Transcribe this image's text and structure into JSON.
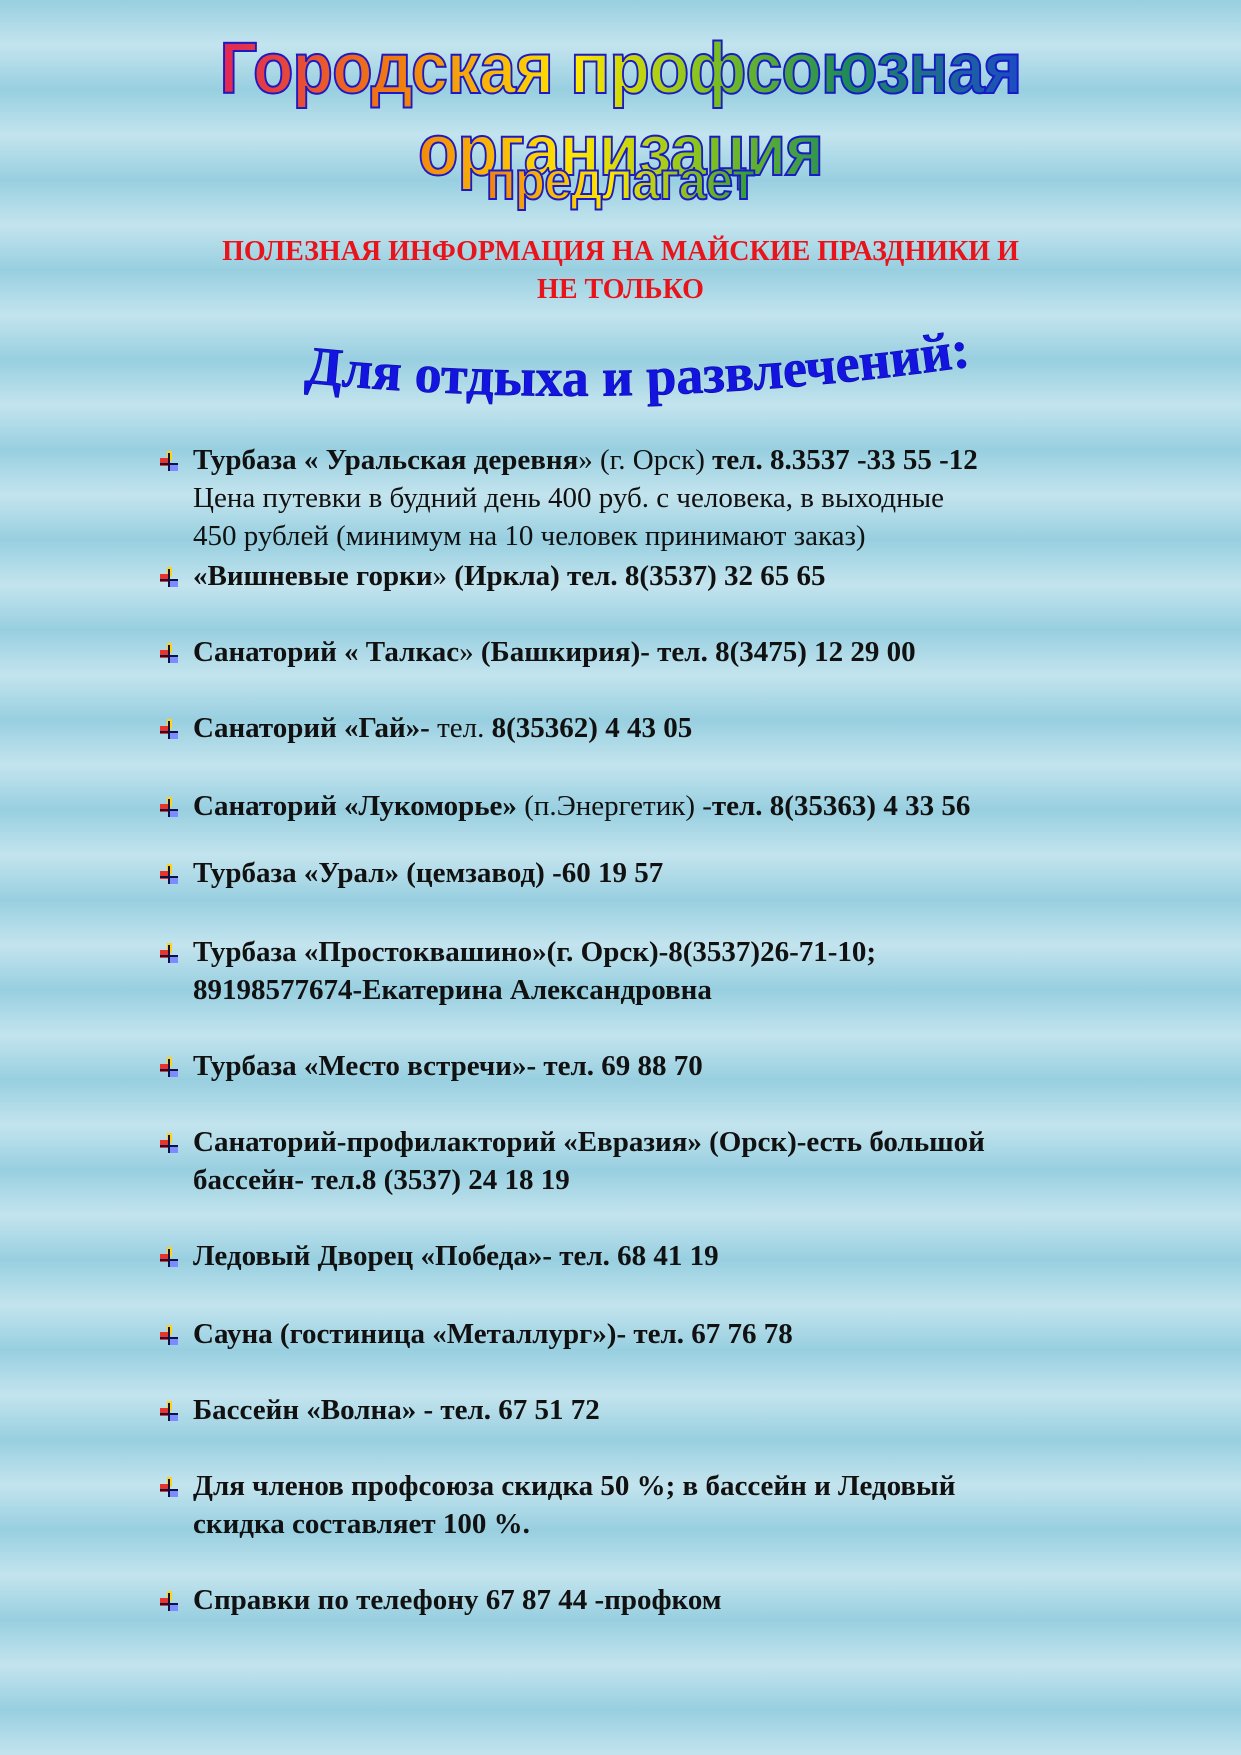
{
  "header": {
    "title": "Городская профсоюзная организация",
    "subtitle": "предлагает",
    "notice_line1": "ПОЛЕЗНАЯ ИНФОРМАЦИЯ  НА МАЙСКИЕ ПРАЗДНИКИ И",
    "notice_line2": "НЕ ТОЛЬКО",
    "section_heading": "Для отдыха и развлечений:"
  },
  "colors": {
    "notice": "#e8141c",
    "heading": "#1414e0",
    "text": "#111111"
  },
  "bullet_icon": "four-color-square-bullet",
  "items": [
    {
      "lines": [
        [
          {
            "t": "Турбаза « Уральская деревня",
            "b": true
          },
          {
            "t": "» (г. Орск)  ",
            "b": false
          },
          {
            "t": "тел.   8.3537 -33 55 -12",
            "b": true
          }
        ],
        [
          {
            "t": "Цена путевки в будний день 400 руб. с человека, в  выходные",
            "b": false
          }
        ],
        [
          {
            "t": "450 рублей (минимум на 10 человек принимают заказ)",
            "b": false
          }
        ]
      ]
    },
    {
      "lines": [
        [
          {
            "t": "«Вишневые горки",
            "b": true
          },
          {
            "t": "» ",
            "b": false
          },
          {
            "t": "(Иркла)   тел.  8(3537)  32 65 65",
            "b": true
          }
        ]
      ]
    },
    {
      "lines": [
        [
          {
            "t": "Санаторий « Талкас",
            "b": true
          },
          {
            "t": "» ",
            "b": false
          },
          {
            "t": "(Башкирия)-  тел. 8(3475)  12 29 00",
            "b": true
          }
        ]
      ]
    },
    {
      "lines": [
        [
          {
            "t": "Санаторий «Гай»-  ",
            "b": true
          },
          {
            "t": "тел. ",
            "b": false
          },
          {
            "t": "8(35362)  4 43 05",
            "b": true
          }
        ]
      ]
    },
    {
      "lines": [
        [
          {
            "t": "Санаторий «Лукоморье» ",
            "b": true
          },
          {
            "t": "(п.Энергетик) -",
            "b": false
          },
          {
            "t": "тел. 8(35363)   4 33 56",
            "b": true
          }
        ]
      ]
    },
    {
      "lines": [
        [
          {
            "t": "Турбаза «Урал» (цемзавод) -60 19 57",
            "b": true
          }
        ]
      ]
    },
    {
      "lines": [
        [
          {
            "t": "Турбаза «Простоквашино»(г. Орск)-8(3537)26-71-10;",
            "b": true
          }
        ],
        [
          {
            "t": "89198577674-Екатерина Александровна",
            "b": true
          }
        ]
      ]
    },
    {
      "lines": [
        [
          {
            "t": "Турбаза «Место встречи»- тел. 69 88 70",
            "b": true
          }
        ]
      ]
    },
    {
      "lines": [
        [
          {
            "t": "Санаторий-профилакторий «Евразия» (Орск)-есть большой",
            "b": true
          }
        ],
        [
          {
            "t": "бассейн- тел.8 (3537) 24 18 19",
            "b": true
          }
        ]
      ]
    },
    {
      "lines": [
        [
          {
            "t": "Ледовый Дворец «Победа»-  тел. 68 41 19",
            "b": true
          }
        ]
      ]
    },
    {
      "lines": [
        [
          {
            "t": "Сауна (гостиница «Металлург»)- тел. 67 76 78",
            "b": true
          }
        ]
      ]
    },
    {
      "lines": [
        [
          {
            "t": "Бассейн «Волна» - тел. 67 51 72",
            "b": true
          }
        ]
      ]
    },
    {
      "lines": [
        [
          {
            "t": "Для членов профсоюза  скидка 50 %; в бассейн и Ледовый",
            "b": true
          }
        ],
        [
          {
            "t": "скидка составляет  100 %.",
            "b": true
          }
        ]
      ]
    },
    {
      "lines": [
        [
          {
            "t": "Справки по телефону  67 87 44 -профком",
            "b": true
          }
        ]
      ]
    }
  ]
}
